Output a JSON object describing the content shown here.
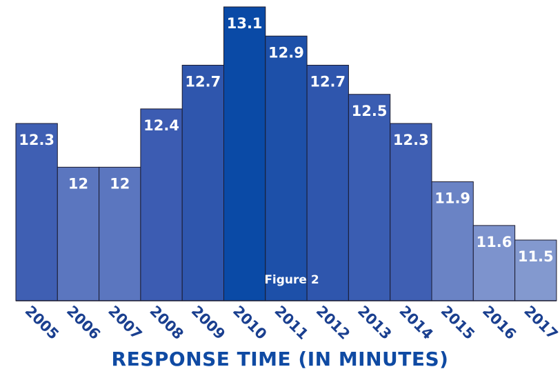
{
  "chart_data": {
    "type": "bar",
    "title": "RESPONSE TIME (IN MINUTES)",
    "annotation": "Figure 2",
    "categories": [
      "2005",
      "2006",
      "2007",
      "2008",
      "2009",
      "2010",
      "2011",
      "2012",
      "2013",
      "2014",
      "2015",
      "2016",
      "2017"
    ],
    "values": [
      12.3,
      12,
      12,
      12.4,
      12.7,
      13.1,
      12.9,
      12.7,
      12.5,
      12.3,
      11.9,
      11.6,
      11.5
    ],
    "value_labels": [
      "12.3",
      "12",
      "12",
      "12.4",
      "12.7",
      "13.1",
      "12.9",
      "12.7",
      "12.5",
      "12.3",
      "11.9",
      "11.6",
      "11.5"
    ],
    "colors": [
      "#3f5fb3",
      "#5b76bf",
      "#5b76bf",
      "#3c5cb2",
      "#2f56ad",
      "#0a4aa6",
      "#1d50a9",
      "#2f56ad",
      "#3a5db2",
      "#3f5fb3",
      "#6a83c5",
      "#7d93cd",
      "#8399cf"
    ],
    "xlabel": "",
    "ylabel": "",
    "grid": false,
    "legend": "none"
  }
}
